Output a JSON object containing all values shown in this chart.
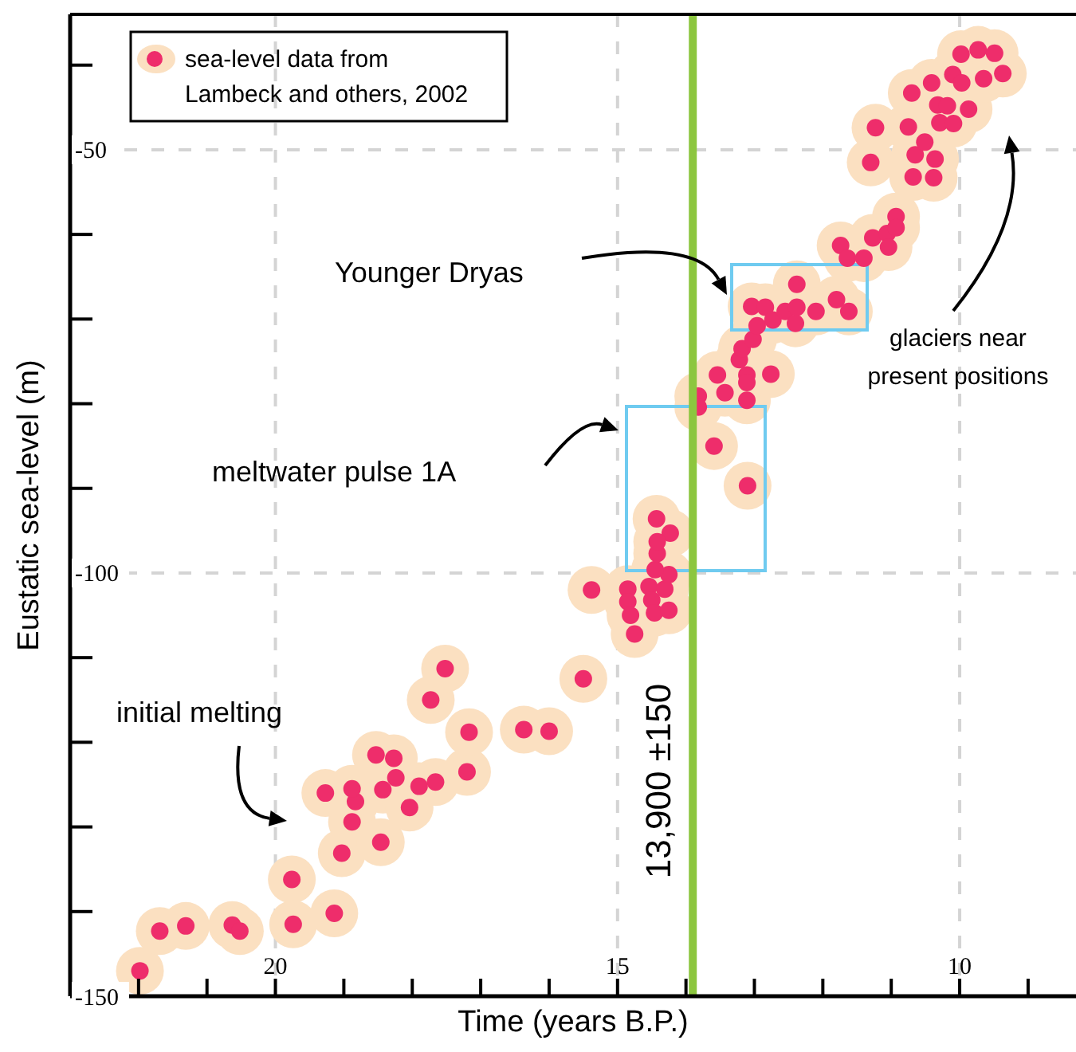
{
  "chart_data": {
    "type": "scatter",
    "xlabel": "Time (years B.P.)",
    "ylabel": "Eustatic sea-level (m)",
    "xlim": [
      23,
      8.3
    ],
    "ylim": [
      -150,
      -34
    ],
    "xticks": [
      {
        "value": 22,
        "label": null
      },
      {
        "value": 21,
        "label": null
      },
      20,
      {
        "value": 19,
        "label": null
      },
      {
        "value": 18,
        "label": null
      },
      {
        "value": 17,
        "label": null
      },
      {
        "value": 16,
        "label": null
      },
      15,
      {
        "value": 14,
        "label": null
      },
      {
        "value": 13,
        "label": null
      },
      {
        "value": 12,
        "label": null
      },
      {
        "value": 11,
        "label": null
      },
      10,
      {
        "value": 9,
        "label": null
      }
    ],
    "yticks": [
      {
        "value": -40,
        "label": null
      },
      -50,
      {
        "value": -60,
        "label": null
      },
      {
        "value": -70,
        "label": null
      },
      {
        "value": -80,
        "label": null
      },
      {
        "value": -90,
        "label": null
      },
      -100,
      {
        "value": -110,
        "label": null
      },
      {
        "value": -120,
        "label": null
      },
      {
        "value": -130,
        "label": null
      },
      {
        "value": -140,
        "label": null
      },
      -150
    ],
    "grid": true,
    "legend": "top left",
    "marker": "circle",
    "series": [
      {
        "name": "sea-level data from Lambeck and others, 2002",
        "color": "#ee2d6b",
        "x": [
          21.98,
          21.69,
          21.31,
          20.63,
          20.52,
          19.76,
          19.74,
          19.14,
          19.03,
          18.88,
          18.83,
          18.88,
          19.27,
          18.53,
          18.27,
          18.24,
          18.43,
          18.46,
          18.04,
          17.9,
          17.66,
          17.73,
          17.52,
          17.2,
          17.17,
          16.37,
          16.0,
          15.5,
          15.38,
          14.85,
          14.85,
          14.81,
          14.75,
          14.54,
          14.5,
          14.46,
          14.31,
          14.25,
          14.25,
          14.45,
          14.42,
          14.23,
          14.43,
          14.42,
          13.1,
          13.59,
          13.82,
          13.82,
          13.54,
          13.43,
          13.11,
          13.11,
          13.11,
          12.76,
          13.22,
          13.18,
          13.02,
          12.96,
          13.04,
          12.84,
          12.73,
          12.55,
          12.4,
          12.38,
          12.38,
          12.1,
          11.8,
          11.62,
          11.74,
          11.64,
          11.4,
          11.27,
          11.06,
          11.04,
          10.93,
          10.93,
          11.3,
          10.68,
          10.38,
          10.36,
          10.65,
          10.51,
          11.23,
          10.75,
          10.29,
          10.09,
          10.32,
          10.18,
          9.87,
          10.7,
          10.41,
          10.1,
          9.97,
          9.65,
          9.37,
          9.98,
          9.73,
          9.49
        ],
        "values": [
          -147.0,
          -142.3,
          -141.7,
          -141.6,
          -142.3,
          -136.2,
          -141.5,
          -140.2,
          -133.1,
          -129.4,
          -127.0,
          -125.5,
          -126.0,
          -121.5,
          -121.9,
          -124.2,
          -125.6,
          -131.8,
          -127.7,
          -125.2,
          -124.7,
          -115.0,
          -111.3,
          -123.5,
          -118.8,
          -118.5,
          -118.7,
          -112.5,
          -102.0,
          -101.9,
          -103.4,
          -105.0,
          -107.2,
          -101.6,
          -103.2,
          -104.7,
          -101.9,
          -104.4,
          -100.2,
          -99.6,
          -97.7,
          -95.3,
          -93.6,
          -96.3,
          -89.7,
          -85.0,
          -79.1,
          -80.4,
          -76.6,
          -78.7,
          -76.6,
          -77.5,
          -79.6,
          -76.5,
          -74.8,
          -73.5,
          -72.4,
          -70.8,
          -68.5,
          -68.6,
          -70.1,
          -69.1,
          -70.5,
          -68.6,
          -65.9,
          -69.1,
          -67.7,
          -69.1,
          -61.3,
          -62.8,
          -62.8,
          -60.4,
          -59.9,
          -61.5,
          -57.9,
          -59.2,
          -51.5,
          -53.2,
          -53.3,
          -51.1,
          -50.6,
          -49.1,
          -47.4,
          -47.3,
          -46.8,
          -46.9,
          -44.7,
          -44.8,
          -45.2,
          -43.3,
          -42.1,
          -41.1,
          -42.1,
          -41.6,
          -41.0,
          -38.7,
          -38.2,
          -38.6
        ]
      }
    ],
    "ref_lines": [
      {
        "axis": "x",
        "value": 13.9,
        "label": "13,900 ±150",
        "color": "#8cc63f"
      }
    ],
    "annotations": [
      "Younger Dryas",
      "meltwater pulse 1A",
      "initial melting",
      "glaciers near present positions"
    ]
  }
}
